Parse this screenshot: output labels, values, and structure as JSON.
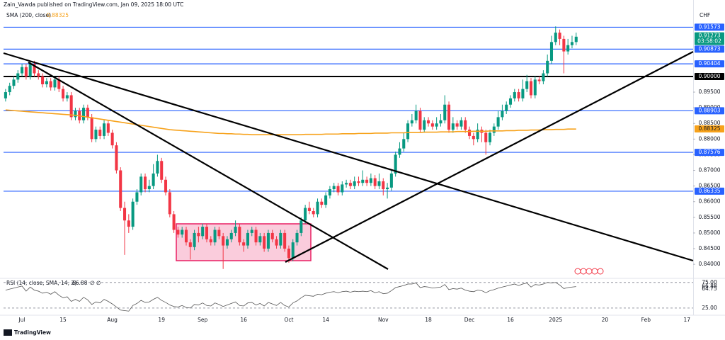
{
  "chart_data": {
    "type": "candlestick",
    "header": "Zain_Vawda published on TradingView.com, Jan 09, 2025 18:00 UTC",
    "currency": "CHF",
    "logo": "TradingView",
    "up_color": "#089981",
    "down_color": "#f23645",
    "ylim": [
      0.8355,
      0.9199
    ],
    "yticks": [
      {
        "value": 0.84,
        "label": "0.84000"
      },
      {
        "value": 0.845,
        "label": "0.84500"
      },
      {
        "value": 0.85,
        "label": "0.85000"
      },
      {
        "value": 0.855,
        "label": "0.85500"
      },
      {
        "value": 0.86,
        "label": "0.86000"
      },
      {
        "value": 0.865,
        "label": "0.86500"
      },
      {
        "value": 0.87,
        "label": "0.87000"
      },
      {
        "value": 0.875,
        "label": "0.87500"
      },
      {
        "value": 0.88,
        "label": "0.88000"
      },
      {
        "value": 0.885,
        "label": "0.88500"
      },
      {
        "value": 0.89,
        "label": "0.89000"
      },
      {
        "value": 0.895,
        "label": "0.89500"
      }
    ],
    "levels": [
      0.91573,
      0.90873,
      0.90404,
      {
        "value": 0.9,
        "label": "0.90000"
      },
      0.88903,
      0.87576,
      0.86335
    ],
    "level_colors": [
      "#2962ff",
      "#2962ff",
      "#2962ff",
      "#000000",
      "#2962ff",
      "#2962ff",
      "#2962ff"
    ],
    "last_price": 0.91273,
    "countdown": "03:58:02",
    "last_color": "#089981",
    "categories": [
      null,
      null,
      null,
      null,
      "Jul",
      null,
      null,
      null,
      null,
      null,
      null,
      null,
      null,
      null,
      "15",
      null,
      null,
      null,
      null,
      null,
      null,
      null,
      null,
      null,
      null,
      null,
      "Aug",
      null,
      null,
      null,
      null,
      null,
      null,
      null,
      null,
      null,
      null,
      null,
      "19",
      null,
      null,
      null,
      null,
      null,
      null,
      null,
      null,
      null,
      "Sep",
      null,
      null,
      null,
      null,
      null,
      null,
      null,
      null,
      null,
      "16",
      null,
      null,
      null,
      null,
      null,
      null,
      null,
      null,
      null,
      null,
      "Oct",
      null,
      null,
      null,
      null,
      null,
      null,
      null,
      null,
      "14",
      null,
      null,
      null,
      null,
      null,
      null,
      null,
      null,
      null,
      null,
      null,
      null,
      null,
      "Nov",
      null,
      null,
      null,
      null,
      null,
      null,
      null,
      null,
      null,
      null,
      "18",
      null,
      null,
      null,
      null,
      null,
      null,
      null,
      null,
      null,
      "Dec",
      null,
      null,
      null,
      null,
      null,
      null,
      null,
      null,
      null,
      "16",
      null,
      null,
      null,
      null,
      null,
      null,
      null,
      null,
      null,
      null,
      "2025",
      null,
      null,
      null,
      null,
      null,
      null,
      null,
      null,
      null,
      null,
      null,
      "20",
      null,
      null,
      null,
      null,
      null,
      null,
      null,
      null,
      null,
      "Feb",
      null,
      null,
      null,
      null,
      null,
      null,
      null,
      null,
      null,
      "17",
      null
    ],
    "candles": [
      [
        0.893,
        0.896,
        0.892,
        0.895
      ],
      [
        0.895,
        0.898,
        0.894,
        0.897
      ],
      [
        0.897,
        0.9,
        0.896,
        0.899
      ],
      [
        0.899,
        0.902,
        0.898,
        0.901
      ],
      [
        0.901,
        0.904,
        0.9,
        0.903
      ],
      [
        0.903,
        0.904,
        0.899,
        0.9
      ],
      [
        0.9,
        0.905,
        0.899,
        0.904
      ],
      [
        0.904,
        0.905,
        0.9,
        0.901
      ],
      [
        0.901,
        0.902,
        0.899,
        0.9
      ],
      [
        0.9,
        0.901,
        0.8965,
        0.8975
      ],
      [
        0.8975,
        0.8995,
        0.8965,
        0.8985
      ],
      [
        0.8985,
        0.8995,
        0.8955,
        0.8965
      ],
      [
        0.8965,
        0.9,
        0.8955,
        0.899
      ],
      [
        0.899,
        0.9,
        0.895,
        0.896
      ],
      [
        0.896,
        0.897,
        0.892,
        0.893
      ],
      [
        0.893,
        0.895,
        0.892,
        0.894
      ],
      [
        0.894,
        0.895,
        0.886,
        0.887
      ],
      [
        0.887,
        0.89,
        0.886,
        0.889
      ],
      [
        0.889,
        0.89,
        0.885,
        0.886
      ],
      [
        0.886,
        0.891,
        0.885,
        0.89
      ],
      [
        0.89,
        0.891,
        0.886,
        0.887
      ],
      [
        0.887,
        0.888,
        0.879,
        0.88
      ],
      [
        0.88,
        0.884,
        0.879,
        0.883
      ],
      [
        0.883,
        0.884,
        0.88,
        0.881
      ],
      [
        0.881,
        0.886,
        0.88,
        0.885
      ],
      [
        0.885,
        0.886,
        0.881,
        0.882
      ],
      [
        0.882,
        0.883,
        0.877,
        0.878
      ],
      [
        0.878,
        0.879,
        0.869,
        0.87
      ],
      [
        0.87,
        0.871,
        0.857,
        0.858
      ],
      [
        0.858,
        0.86,
        0.843,
        0.854
      ],
      [
        0.854,
        0.856,
        0.85,
        0.852
      ],
      [
        0.852,
        0.861,
        0.851,
        0.86
      ],
      [
        0.86,
        0.864,
        0.859,
        0.863
      ],
      [
        0.863,
        0.869,
        0.862,
        0.868
      ],
      [
        0.868,
        0.869,
        0.863,
        0.864
      ],
      [
        0.864,
        0.867,
        0.863,
        0.865
      ],
      [
        0.865,
        0.872,
        0.864,
        0.869
      ],
      [
        0.869,
        0.875,
        0.868,
        0.873
      ],
      [
        0.873,
        0.874,
        0.866,
        0.867
      ],
      [
        0.867,
        0.868,
        0.862,
        0.863
      ],
      [
        0.863,
        0.864,
        0.855,
        0.856
      ],
      [
        0.856,
        0.857,
        0.85,
        0.851
      ],
      [
        0.851,
        0.852,
        0.8485,
        0.8495
      ],
      [
        0.8495,
        0.852,
        0.8485,
        0.851
      ],
      [
        0.851,
        0.852,
        0.846,
        0.847
      ],
      [
        0.847,
        0.848,
        0.8415,
        0.8455
      ],
      [
        0.8455,
        0.851,
        0.8445,
        0.85
      ],
      [
        0.85,
        0.852,
        0.847,
        0.849
      ],
      [
        0.849,
        0.853,
        0.848,
        0.852
      ],
      [
        0.852,
        0.853,
        0.847,
        0.848
      ],
      [
        0.848,
        0.849,
        0.846,
        0.847
      ],
      [
        0.847,
        0.852,
        0.846,
        0.851
      ],
      [
        0.851,
        0.852,
        0.848,
        0.849
      ],
      [
        0.849,
        0.85,
        0.8385,
        0.846
      ],
      [
        0.846,
        0.849,
        0.845,
        0.848
      ],
      [
        0.848,
        0.851,
        0.847,
        0.85
      ],
      [
        0.85,
        0.854,
        0.849,
        0.852
      ],
      [
        0.852,
        0.853,
        0.846,
        0.847
      ],
      [
        0.847,
        0.848,
        0.844,
        0.846
      ],
      [
        0.846,
        0.851,
        0.845,
        0.85
      ],
      [
        0.85,
        0.852,
        0.849,
        0.851
      ],
      [
        0.851,
        0.852,
        0.846,
        0.847
      ],
      [
        0.847,
        0.85,
        0.846,
        0.849
      ],
      [
        0.849,
        0.85,
        0.844,
        0.845
      ],
      [
        0.845,
        0.851,
        0.844,
        0.85
      ],
      [
        0.85,
        0.851,
        0.847,
        0.848
      ],
      [
        0.848,
        0.849,
        0.845,
        0.846
      ],
      [
        0.846,
        0.851,
        0.845,
        0.85
      ],
      [
        0.85,
        0.851,
        0.844,
        0.845
      ],
      [
        0.845,
        0.846,
        0.8405,
        0.842
      ],
      [
        0.842,
        0.848,
        0.841,
        0.847
      ],
      [
        0.847,
        0.851,
        0.846,
        0.85
      ],
      [
        0.85,
        0.855,
        0.849,
        0.854
      ],
      [
        0.854,
        0.859,
        0.853,
        0.858
      ],
      [
        0.858,
        0.86,
        0.856,
        0.857
      ],
      [
        0.857,
        0.858,
        0.855,
        0.856
      ],
      [
        0.856,
        0.861,
        0.855,
        0.86
      ],
      [
        0.86,
        0.861,
        0.858,
        0.859
      ],
      [
        0.859,
        0.863,
        0.858,
        0.862
      ],
      [
        0.862,
        0.865,
        0.861,
        0.864
      ],
      [
        0.864,
        0.866,
        0.863,
        0.865
      ],
      [
        0.865,
        0.866,
        0.862,
        0.863
      ],
      [
        0.863,
        0.8665,
        0.862,
        0.8655
      ],
      [
        0.8655,
        0.867,
        0.8645,
        0.866
      ],
      [
        0.866,
        0.867,
        0.864,
        0.865
      ],
      [
        0.865,
        0.868,
        0.864,
        0.8665
      ],
      [
        0.8665,
        0.868,
        0.865,
        0.866
      ],
      [
        0.866,
        0.87,
        0.865,
        0.867
      ],
      [
        0.867,
        0.868,
        0.865,
        0.866
      ],
      [
        0.866,
        0.869,
        0.865,
        0.8675
      ],
      [
        0.8675,
        0.8685,
        0.864,
        0.865
      ],
      [
        0.865,
        0.869,
        0.864,
        0.8665
      ],
      [
        0.8665,
        0.8675,
        0.862,
        0.864
      ],
      [
        0.864,
        0.866,
        0.861,
        0.8645
      ],
      [
        0.8645,
        0.87,
        0.8635,
        0.869
      ],
      [
        0.869,
        0.876,
        0.868,
        0.875
      ],
      [
        0.875,
        0.879,
        0.874,
        0.877
      ],
      [
        0.877,
        0.882,
        0.876,
        0.88
      ],
      [
        0.88,
        0.886,
        0.879,
        0.885
      ],
      [
        0.885,
        0.888,
        0.884,
        0.886
      ],
      [
        0.886,
        0.891,
        0.885,
        0.889
      ],
      [
        0.889,
        0.89,
        0.882,
        0.883
      ],
      [
        0.883,
        0.887,
        0.882,
        0.886
      ],
      [
        0.886,
        0.887,
        0.884,
        0.885
      ],
      [
        0.885,
        0.886,
        0.883,
        0.884
      ],
      [
        0.884,
        0.887,
        0.883,
        0.885
      ],
      [
        0.885,
        0.888,
        0.884,
        0.886
      ],
      [
        0.886,
        0.894,
        0.885,
        0.891
      ],
      [
        0.891,
        0.892,
        0.882,
        0.883
      ],
      [
        0.883,
        0.887,
        0.882,
        0.885
      ],
      [
        0.885,
        0.886,
        0.883,
        0.884
      ],
      [
        0.884,
        0.887,
        0.883,
        0.886
      ],
      [
        0.886,
        0.887,
        0.882,
        0.883
      ],
      [
        0.883,
        0.884,
        0.88,
        0.881
      ],
      [
        0.881,
        0.882,
        0.878,
        0.88
      ],
      [
        0.88,
        0.885,
        0.879,
        0.883
      ],
      [
        0.883,
        0.884,
        0.879,
        0.882
      ],
      [
        0.882,
        0.883,
        0.875,
        0.879
      ],
      [
        0.879,
        0.883,
        0.878,
        0.882
      ],
      [
        0.882,
        0.885,
        0.881,
        0.884
      ],
      [
        0.884,
        0.889,
        0.883,
        0.887
      ],
      [
        0.887,
        0.891,
        0.886,
        0.889
      ],
      [
        0.889,
        0.892,
        0.888,
        0.891
      ],
      [
        0.891,
        0.894,
        0.89,
        0.893
      ],
      [
        0.893,
        0.896,
        0.892,
        0.895
      ],
      [
        0.895,
        0.896,
        0.892,
        0.893
      ],
      [
        0.893,
        0.899,
        0.892,
        0.896
      ],
      [
        0.896,
        0.9005,
        0.895,
        0.8985
      ],
      [
        0.8985,
        0.8995,
        0.893,
        0.894
      ],
      [
        0.894,
        0.9,
        0.893,
        0.899
      ],
      [
        0.899,
        0.9,
        0.8975,
        0.8985
      ],
      [
        0.8985,
        0.902,
        0.8975,
        0.901
      ],
      [
        0.901,
        0.907,
        0.9,
        0.905
      ],
      [
        0.905,
        0.913,
        0.904,
        0.911
      ],
      [
        0.911,
        0.916,
        0.91,
        0.914
      ],
      [
        0.914,
        0.915,
        0.91,
        0.912
      ],
      [
        0.912,
        0.913,
        0.901,
        0.908
      ],
      [
        0.908,
        0.912,
        0.907,
        0.91
      ],
      [
        0.91,
        0.913,
        0.909,
        0.911
      ],
      [
        0.911,
        0.914,
        0.91,
        0.9127
      ],
      null,
      null,
      null,
      null,
      null,
      null,
      null,
      null,
      null,
      null,
      null,
      null,
      null,
      null,
      null,
      null,
      null,
      null,
      null,
      null,
      null,
      null,
      null,
      null,
      null,
      null,
      null,
      null
    ],
    "sma": {
      "label": "SMA (200, close)",
      "last": 0.88325,
      "color": "#f7a21b",
      "values": [
        0.8893,
        0.8892,
        0.8891,
        0.889,
        0.8889,
        0.8888,
        0.8887,
        0.8886,
        0.8885,
        0.8884,
        0.8883,
        0.8882,
        0.8881,
        0.888,
        0.8879,
        0.8878,
        0.8877,
        0.8876,
        0.8874,
        0.8872,
        0.887,
        0.8868,
        0.8866,
        0.8864,
        0.8862,
        0.886,
        0.8858,
        0.8856,
        0.8854,
        0.8852,
        0.885,
        0.8848,
        0.8846,
        0.8844,
        0.8842,
        0.884,
        0.8838,
        0.8836,
        0.8834,
        0.8832,
        0.883,
        0.8829,
        0.8828,
        0.8827,
        0.8826,
        0.8825,
        0.8824,
        0.8823,
        0.8822,
        0.8821,
        0.882,
        0.8819,
        0.8818,
        0.8818,
        0.8817,
        0.8817,
        0.8816,
        0.8816,
        0.8815,
        0.8815,
        0.8814,
        0.8814,
        0.8814,
        0.8814,
        0.8814,
        0.8814,
        0.8814,
        0.8814,
        0.8814,
        0.8814,
        0.8814,
        0.8814,
        0.8814,
        0.8815,
        0.8815,
        0.8815,
        0.8815,
        0.8815,
        0.8816,
        0.8816,
        0.8816,
        0.8816,
        0.8817,
        0.8817,
        0.8817,
        0.8817,
        0.8818,
        0.8818,
        0.8818,
        0.8818,
        0.8819,
        0.8819,
        0.8819,
        0.8819,
        0.882,
        0.882,
        0.882,
        0.882,
        0.8821,
        0.8821,
        0.8821,
        0.8821,
        0.8822,
        0.8822,
        0.8822,
        0.8822,
        0.8823,
        0.8823,
        0.8823,
        0.8823,
        0.8824,
        0.8824,
        0.8824,
        0.8824,
        0.8825,
        0.8825,
        0.8825,
        0.8825,
        0.8826,
        0.8826,
        0.8826,
        0.8826,
        0.8827,
        0.8827,
        0.8827,
        0.8828,
        0.8828,
        0.8828,
        0.8829,
        0.8829,
        0.8829,
        0.883,
        0.883,
        0.883,
        0.8831,
        0.8831,
        0.8831,
        0.8832,
        0.8832,
        0.8832,
        null,
        null,
        null,
        null,
        null,
        null,
        null,
        null,
        null,
        null,
        null,
        null,
        null,
        null,
        null,
        null,
        null,
        null,
        null,
        null,
        null,
        null,
        null,
        null,
        null,
        null,
        null,
        null
      ]
    },
    "rsi": {
      "label": "RSI (14, close, SMA, 14, 2)",
      "last": 66.88,
      "ma_last": 64.75,
      "placeholders": "∅ ∅",
      "color": "#555555",
      "ylim": [
        11,
        83
      ],
      "yticks": [
        {
          "value": 75,
          "label": "75.00"
        },
        {
          "value": 25,
          "label": "25.00"
        }
      ],
      "values": [
        60,
        62,
        64,
        66,
        68,
        58,
        66,
        60,
        58,
        54,
        56,
        52,
        57,
        50,
        45,
        47,
        38,
        42,
        38,
        46,
        41,
        32,
        37,
        35,
        42,
        38,
        33,
        27,
        21,
        20,
        19,
        30,
        34,
        40,
        36,
        37,
        42,
        46,
        40,
        36,
        31,
        28,
        27,
        30,
        26,
        25,
        32,
        31,
        35,
        30,
        29,
        35,
        32,
        28,
        31,
        34,
        37,
        30,
        29,
        35,
        36,
        31,
        34,
        29,
        36,
        33,
        30,
        36,
        30,
        27,
        35,
        39,
        45,
        50,
        49,
        48,
        52,
        51,
        54,
        56,
        57,
        55,
        57,
        58,
        56,
        58,
        57,
        58,
        57,
        59,
        55,
        57,
        53,
        54,
        59,
        65,
        67,
        69,
        72,
        72,
        74,
        65,
        67,
        66,
        64,
        65,
        66,
        71,
        61,
        63,
        62,
        64,
        60,
        58,
        57,
        60,
        59,
        55,
        59,
        61,
        64,
        66,
        68,
        70,
        72,
        69,
        72,
        74,
        66,
        71,
        70,
        72,
        75,
        74,
        75,
        70,
        63,
        65,
        66,
        66.88,
        null,
        null,
        null,
        null,
        null,
        null,
        null,
        null,
        null,
        null,
        null,
        null,
        null,
        null,
        null,
        null,
        null,
        null,
        null,
        null,
        null,
        null,
        null,
        null,
        null,
        null,
        null,
        null
      ]
    }
  }
}
